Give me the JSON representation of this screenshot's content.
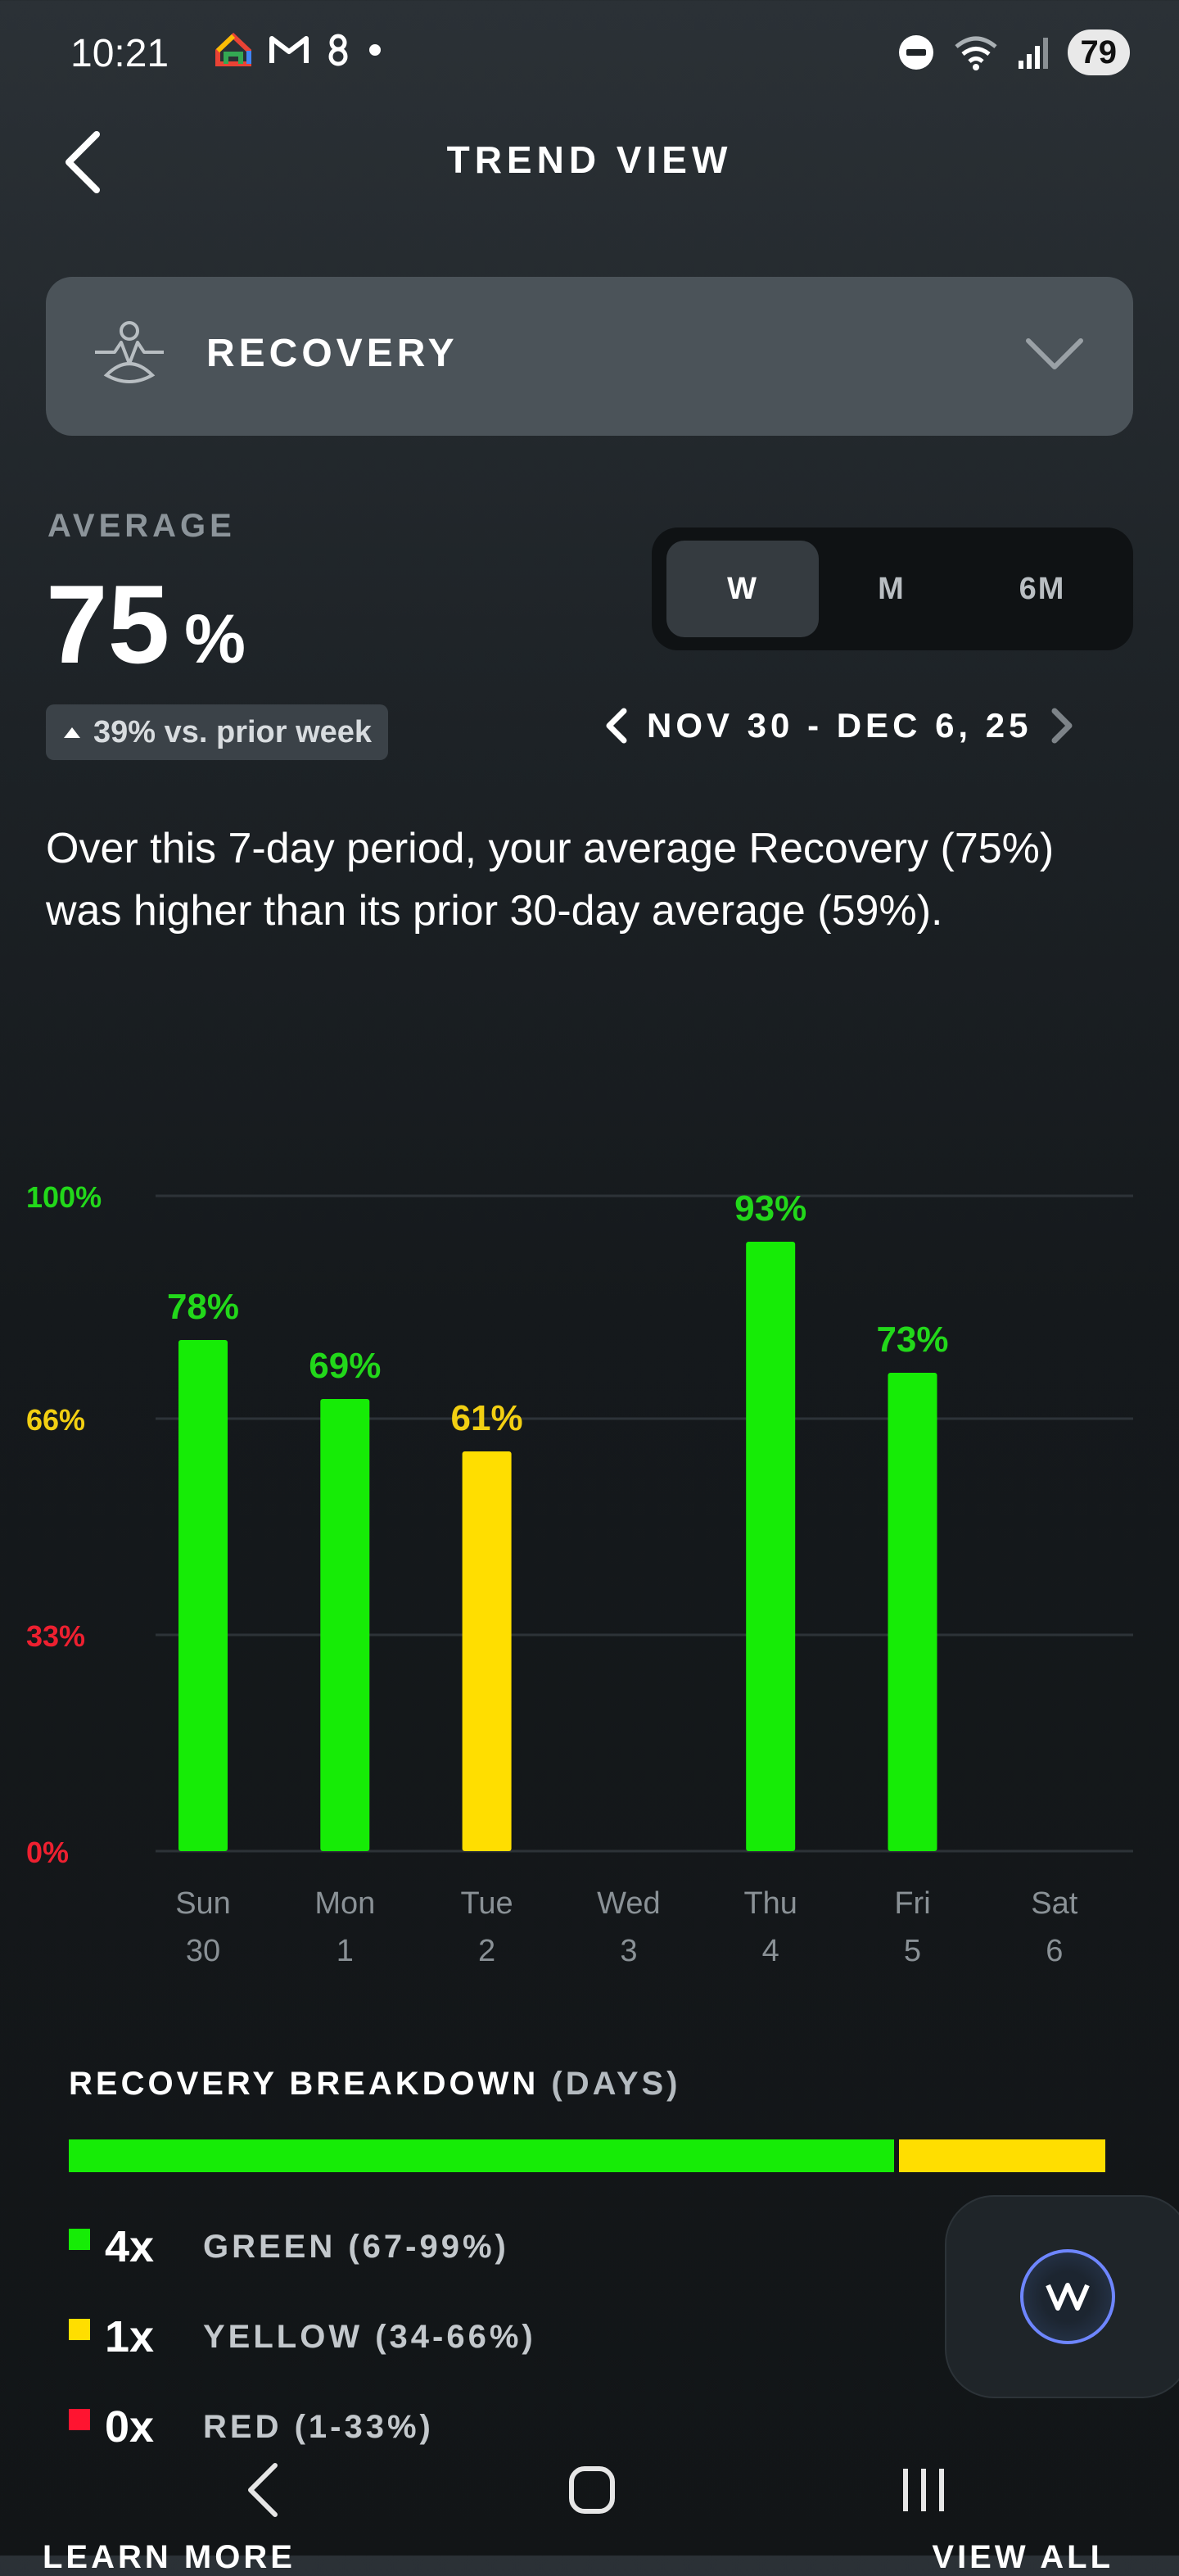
{
  "status": {
    "time": "10:21",
    "battery": "79"
  },
  "header": {
    "title": "TREND VIEW"
  },
  "metric": {
    "label": "RECOVERY"
  },
  "average": {
    "label": "AVERAGE",
    "value": "75",
    "unit": "%",
    "delta": "39% vs. prior week"
  },
  "range_tabs": [
    {
      "label": "W",
      "active": true
    },
    {
      "label": "M",
      "active": false
    },
    {
      "label": "6M",
      "active": false
    }
  ],
  "date_range": "NOV 30 - DEC 6, 25",
  "description": "Over this 7-day period, your average Recovery (75%) was higher than its prior 30-day average (59%).",
  "colors": {
    "green": "#16ec06",
    "yellow": "#ffde00",
    "red": "#ff1430",
    "green_label": "#22d81a",
    "yellow_label": "#f2cf12",
    "red_label": "#ee2030",
    "gridline": "#2d3338"
  },
  "chart_data": {
    "type": "bar",
    "ylim": [
      0,
      100
    ],
    "yticks": [
      {
        "value": 100,
        "label": "100%",
        "color": "#22d81a"
      },
      {
        "value": 66,
        "label": "66%",
        "color": "#f2cf12"
      },
      {
        "value": 33,
        "label": "33%",
        "color": "#ee2030"
      },
      {
        "value": 0,
        "label": "0%",
        "color": "#ee2030"
      }
    ],
    "categories": [
      {
        "day": "Sun",
        "date": "30"
      },
      {
        "day": "Mon",
        "date": "1"
      },
      {
        "day": "Tue",
        "date": "2"
      },
      {
        "day": "Wed",
        "date": "3"
      },
      {
        "day": "Thu",
        "date": "4"
      },
      {
        "day": "Fri",
        "date": "5"
      },
      {
        "day": "Sat",
        "date": "6"
      }
    ],
    "values": [
      78,
      69,
      61,
      null,
      93,
      73,
      null
    ],
    "value_labels": [
      "78%",
      "69%",
      "61%",
      "",
      "93%",
      "73%",
      ""
    ],
    "bar_colors": [
      "#16ec06",
      "#16ec06",
      "#ffde00",
      null,
      "#16ec06",
      "#16ec06",
      null
    ]
  },
  "breakdown": {
    "title": "RECOVERY BREAKDOWN",
    "title_suffix": "(DAYS)",
    "shares": {
      "green": 0.8,
      "yellow": 0.2
    },
    "items": [
      {
        "count": "4x",
        "label": "GREEN (67-99%)",
        "color": "#16ec06"
      },
      {
        "count": "1x",
        "label": "YELLOW (34-66%)",
        "color": "#ffde00"
      },
      {
        "count": "0x",
        "label": "RED (1-33%)",
        "color": "#ff1430"
      }
    ]
  },
  "footer": {
    "learn_more": "LEARN MORE",
    "view_all": "VIEW ALL"
  }
}
